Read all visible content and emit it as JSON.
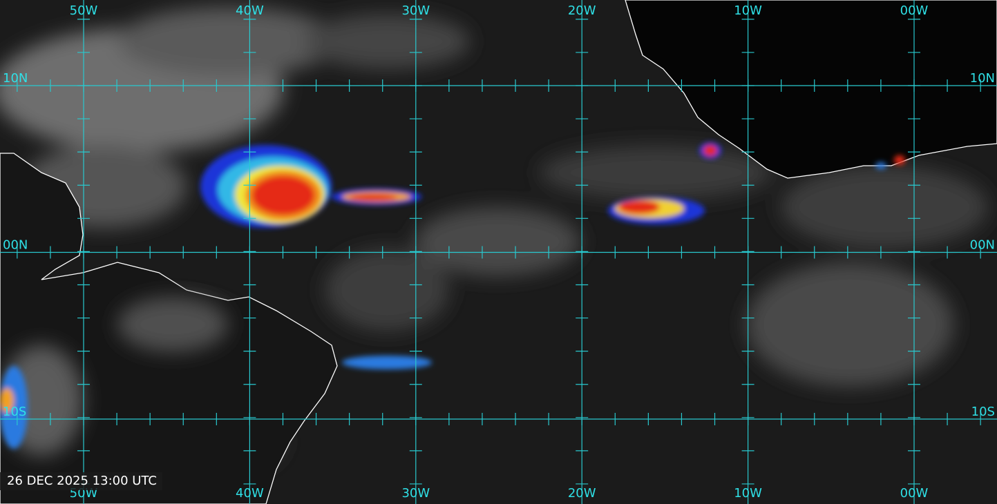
{
  "longitude_labels": [
    "50W",
    "40W",
    "30W",
    "20W",
    "10W",
    "00W"
  ],
  "latitude_labels": [
    "10N",
    "00N",
    "10S"
  ],
  "timestamp": "26 DEC 2025 13:00 UTC"
}
